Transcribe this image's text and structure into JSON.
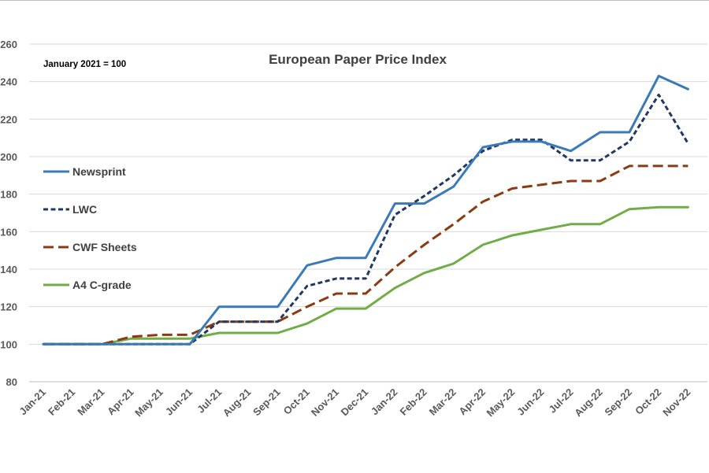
{
  "chart_data": {
    "type": "line",
    "title": "European Paper Price Index",
    "annotation": "January 2021 = 100",
    "xlabel": "",
    "ylabel": "",
    "ylim": [
      80,
      260
    ],
    "yticks": [
      80,
      100,
      120,
      140,
      160,
      180,
      200,
      220,
      240,
      260
    ],
    "grid": true,
    "legend_position": "left",
    "categories": [
      "Jan-21",
      "Feb-21",
      "Mar-21",
      "Apr-21",
      "May-21",
      "Jun-21",
      "Jul-21",
      "Aug-21",
      "Sep-21",
      "Oct-21",
      "Nov-21",
      "Dec-21",
      "Jan-22",
      "Feb-22",
      "Mar-22",
      "Apr-22",
      "May-22",
      "Jun-22",
      "Jul-22",
      "Aug-22",
      "Sep-22",
      "Oct-22",
      "Nov-22"
    ],
    "series": [
      {
        "name": "Newsprint",
        "color": "#3a7ab8",
        "dash": "solid",
        "values": [
          100,
          100,
          100,
          100,
          100,
          100,
          120,
          120,
          120,
          142,
          146,
          146,
          175,
          175,
          184,
          205,
          208,
          208,
          203,
          213,
          213,
          243,
          236
        ]
      },
      {
        "name": "LWC",
        "color": "#1f3864",
        "dash": "dotted",
        "values": [
          100,
          100,
          100,
          100,
          100,
          100,
          112,
          112,
          112,
          131,
          135,
          135,
          169,
          179,
          190,
          203,
          209,
          209,
          198,
          198,
          208,
          233,
          207
        ]
      },
      {
        "name": "CWF Sheets",
        "color": "#8b3a12",
        "dash": "dashed",
        "values": [
          100,
          100,
          100,
          104,
          105,
          105,
          112,
          112,
          112,
          120,
          127,
          127,
          141,
          153,
          164,
          176,
          183,
          185,
          187,
          187,
          195,
          195,
          195
        ]
      },
      {
        "name": "A4 C-grade",
        "color": "#70ad47",
        "dash": "solid",
        "values": [
          100,
          100,
          100,
          103,
          103,
          103,
          106,
          106,
          106,
          111,
          119,
          119,
          130,
          138,
          143,
          153,
          158,
          161,
          164,
          164,
          172,
          173,
          173
        ]
      }
    ]
  }
}
